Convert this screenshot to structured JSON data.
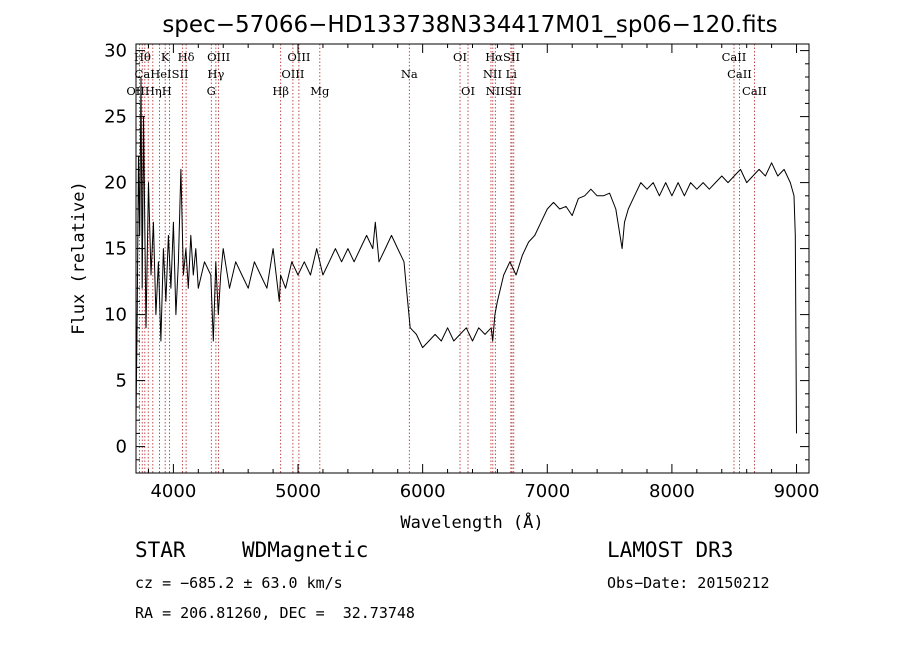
{
  "chart_data": {
    "type": "line",
    "title": "spec−57066−HD133738N334417M01_sp06−120.fits",
    "xlabel": "Wavelength (Å)",
    "ylabel": "Flux (relative)",
    "xlim": [
      3700,
      9100
    ],
    "ylim": [
      -2,
      30.5
    ],
    "x_ticks": [
      4000,
      5000,
      6000,
      7000,
      8000,
      9000
    ],
    "y_ticks": [
      0,
      5,
      10,
      15,
      20,
      25,
      30
    ],
    "series": [
      {
        "name": "flux",
        "x": [
          3700,
          3710,
          3720,
          3730,
          3740,
          3750,
          3760,
          3780,
          3800,
          3820,
          3840,
          3860,
          3880,
          3900,
          3920,
          3940,
          3960,
          3980,
          4000,
          4020,
          4040,
          4060,
          4080,
          4100,
          4120,
          4140,
          4160,
          4180,
          4200,
          4250,
          4300,
          4320,
          4340,
          4360,
          4380,
          4400,
          4450,
          4500,
          4550,
          4600,
          4650,
          4700,
          4750,
          4800,
          4850,
          4860,
          4900,
          4950,
          5000,
          5050,
          5100,
          5150,
          5200,
          5250,
          5300,
          5350,
          5400,
          5450,
          5500,
          5550,
          5600,
          5620,
          5650,
          5700,
          5750,
          5800,
          5850,
          5870,
          5900,
          5950,
          6000,
          6050,
          6100,
          6150,
          6200,
          6250,
          6300,
          6350,
          6400,
          6450,
          6500,
          6550,
          6562,
          6580,
          6600,
          6650,
          6700,
          6750,
          6800,
          6850,
          6900,
          6950,
          7000,
          7050,
          7100,
          7150,
          7200,
          7250,
          7300,
          7350,
          7400,
          7450,
          7500,
          7550,
          7600,
          7620,
          7650,
          7700,
          7750,
          7800,
          7850,
          7900,
          7950,
          8000,
          8050,
          8100,
          8150,
          8200,
          8250,
          8300,
          8350,
          8400,
          8450,
          8500,
          8550,
          8600,
          8650,
          8700,
          8750,
          8800,
          8850,
          8900,
          8950,
          8980,
          8990,
          9000
        ],
        "y": [
          2,
          10,
          22,
          16,
          28,
          12,
          25,
          9,
          20,
          13,
          17,
          10,
          14,
          8,
          15,
          11,
          16,
          12,
          17,
          10,
          14,
          21,
          13,
          15,
          12,
          16,
          13,
          15,
          12,
          14,
          13,
          8,
          14,
          10,
          13,
          15,
          12,
          14,
          13,
          12,
          14,
          13,
          12,
          15,
          11,
          13,
          12,
          14,
          13,
          14,
          13,
          15,
          13,
          14,
          15,
          14,
          15,
          14,
          15,
          16,
          15,
          17,
          14,
          15,
          16,
          15,
          14,
          12,
          9,
          8.5,
          7.5,
          8,
          8.5,
          8,
          9,
          8,
          8.5,
          9,
          8,
          9,
          8.5,
          9,
          8,
          10,
          11,
          13,
          14,
          13,
          14.5,
          15.5,
          16,
          17,
          18,
          18.5,
          18,
          18.2,
          17.5,
          18.8,
          19,
          19.5,
          19,
          19,
          19.2,
          18,
          15,
          17,
          18,
          19,
          20,
          19.5,
          20,
          19,
          20,
          19,
          20,
          19,
          20,
          19.5,
          20,
          19.5,
          20,
          20.5,
          20,
          20.5,
          21,
          20,
          20.5,
          21,
          20.5,
          21.5,
          20.5,
          21,
          20,
          19,
          16,
          1
        ]
      }
    ],
    "spectral_lines": [
      {
        "wl": 3727,
        "label": "OII"
      },
      {
        "wl": 3750,
        "label": "Hθ"
      },
      {
        "wl": 3771,
        "label": "H"
      },
      {
        "wl": 3798,
        "label": "Hη"
      },
      {
        "wl": 3835,
        "label": "Ca"
      },
      {
        "wl": 3889,
        "label": "HeI"
      },
      {
        "wl": 3934,
        "label": "K"
      },
      {
        "wl": 3968,
        "label": "H"
      },
      {
        "wl": 4072,
        "label": "SII"
      },
      {
        "wl": 4102,
        "label": "Hδ"
      },
      {
        "wl": 4304,
        "label": "G"
      },
      {
        "wl": 4341,
        "label": "Hγ"
      },
      {
        "wl": 4363,
        "label": "OIII"
      },
      {
        "wl": 4861,
        "label": "Hβ"
      },
      {
        "wl": 4959,
        "label": "OIII"
      },
      {
        "wl": 5007,
        "label": "OIII"
      },
      {
        "wl": 5175,
        "label": "Mg"
      },
      {
        "wl": 5893,
        "label": "Na"
      },
      {
        "wl": 6300,
        "label": "OI"
      },
      {
        "wl": 6364,
        "label": "OI"
      },
      {
        "wl": 6548,
        "label": "NII"
      },
      {
        "wl": 6563,
        "label": "Hα"
      },
      {
        "wl": 6583,
        "label": "NII"
      },
      {
        "wl": 6708,
        "label": "Li"
      },
      {
        "wl": 6717,
        "label": "SII"
      },
      {
        "wl": 6731,
        "label": "SII"
      },
      {
        "wl": 8498,
        "label": "CaII"
      },
      {
        "wl": 8542,
        "label": "CaII"
      },
      {
        "wl": 8662,
        "label": "CaII"
      }
    ],
    "line_labels": [
      {
        "text": "Hθ",
        "wl": 3752,
        "row": 0
      },
      {
        "text": "K",
        "wl": 3934,
        "row": 0
      },
      {
        "text": "Hδ",
        "wl": 4102,
        "row": 0
      },
      {
        "text": "OIII",
        "wl": 4363,
        "row": 0
      },
      {
        "text": "OIII",
        "wl": 5007,
        "row": 0
      },
      {
        "text": "OI",
        "wl": 6300,
        "row": 0
      },
      {
        "text": "HαSII",
        "wl": 6642,
        "row": 0
      },
      {
        "text": "CaII",
        "wl": 8498,
        "row": 0
      },
      {
        "text": "CaHeISII",
        "wl": 3905,
        "row": 1
      },
      {
        "text": "Hγ",
        "wl": 4341,
        "row": 1
      },
      {
        "text": "OIII",
        "wl": 4959,
        "row": 1
      },
      {
        "text": "Na",
        "wl": 5893,
        "row": 1
      },
      {
        "text": "NII Li",
        "wl": 6620,
        "row": 1
      },
      {
        "text": "CaII",
        "wl": 8542,
        "row": 1
      },
      {
        "text": "OIIHηH",
        "wl": 3805,
        "row": 2
      },
      {
        "text": "G",
        "wl": 4304,
        "row": 2
      },
      {
        "text": "Hβ",
        "wl": 4861,
        "row": 2
      },
      {
        "text": "Mg",
        "wl": 5175,
        "row": 2
      },
      {
        "text": "OI",
        "wl": 6364,
        "row": 2
      },
      {
        "text": "NIISII",
        "wl": 6650,
        "row": 2
      },
      {
        "text": "CaII",
        "wl": 8662,
        "row": 2
      }
    ]
  },
  "info": {
    "class": "STAR",
    "subclass": "WDMagnetic",
    "survey": "LAMOST DR3",
    "cz": "cz = −685.2 ± 63.0 km/s",
    "obs_date": "Obs−Date: 20150212",
    "radec": "RA = 206.81260, DEC =  32.73748"
  },
  "colors": {
    "line_marker": "#b22222",
    "spectrum": "#000000"
  }
}
